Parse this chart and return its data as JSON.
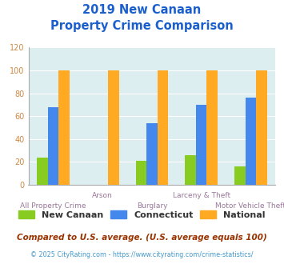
{
  "title_line1": "2019 New Canaan",
  "title_line2": "Property Crime Comparison",
  "title_color": "#1a5fcc",
  "categories": [
    "All Property Crime",
    "Arson",
    "Burglary",
    "Larceny & Theft",
    "Motor Vehicle Theft"
  ],
  "new_canaan": [
    24,
    0,
    21,
    26,
    16
  ],
  "connecticut": [
    68,
    0,
    54,
    70,
    76
  ],
  "national": [
    100,
    100,
    100,
    100,
    100
  ],
  "color_new_canaan": "#88cc22",
  "color_connecticut": "#4488ee",
  "color_national": "#ffaa22",
  "ylim": [
    0,
    120
  ],
  "yticks": [
    0,
    20,
    40,
    60,
    80,
    100,
    120
  ],
  "legend_labels": [
    "New Canaan",
    "Connecticut",
    "National"
  ],
  "footnote1": "Compared to U.S. average. (U.S. average equals 100)",
  "footnote2": "© 2025 CityRating.com - https://www.cityrating.com/crime-statistics/",
  "footnote1_color": "#993300",
  "footnote2_color": "#4499cc",
  "bg_color": "#ddeef0",
  "axis_label_color": "#997799",
  "tick_color": "#cc8844",
  "bar_width": 0.22,
  "grid_color": "#ffffff",
  "upper_labels": [
    1,
    3
  ],
  "lower_labels": [
    0,
    2,
    4
  ]
}
